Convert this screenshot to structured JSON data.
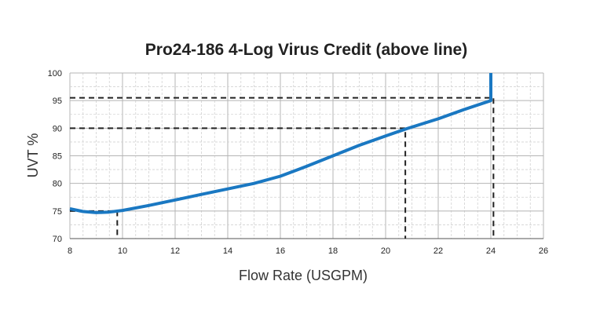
{
  "chart_data": {
    "type": "line",
    "title": "Pro24-186  4-Log Virus Credit (above line)",
    "xlabel": "Flow Rate (USGPM)",
    "ylabel": "UVT %",
    "xlim": [
      8,
      26
    ],
    "ylim": [
      70,
      100
    ],
    "x_ticks": [
      "8",
      "10",
      "12",
      "14",
      "16",
      "18",
      "20",
      "22",
      "24",
      "26"
    ],
    "y_ticks": [
      "70",
      "75",
      "80",
      "85",
      "90",
      "95",
      "100"
    ],
    "grid": true,
    "series": [
      {
        "color": "#1a78c2",
        "points": [
          [
            8.0,
            75.4
          ],
          [
            8.5,
            74.9
          ],
          [
            9.0,
            74.7
          ],
          [
            9.5,
            74.8
          ],
          [
            10.0,
            75.1
          ],
          [
            11.0,
            76.0
          ],
          [
            12.0,
            77.0
          ],
          [
            13.0,
            78.0
          ],
          [
            14.0,
            79.0
          ],
          [
            15.0,
            80.0
          ],
          [
            16.0,
            81.3
          ],
          [
            17.0,
            83.1
          ],
          [
            18.0,
            85.0
          ],
          [
            19.0,
            86.9
          ],
          [
            20.0,
            88.6
          ],
          [
            20.8,
            89.9
          ],
          [
            22.0,
            91.7
          ],
          [
            23.0,
            93.4
          ],
          [
            24.0,
            95.0
          ],
          [
            24.0,
            100.0
          ]
        ]
      }
    ],
    "reference_points": [
      {
        "x": 9.8,
        "y": 75.0
      },
      {
        "x": 20.75,
        "y": 90.0
      },
      {
        "x": 24.1,
        "y": 95.5
      }
    ],
    "reference_line_color": "#222222"
  }
}
